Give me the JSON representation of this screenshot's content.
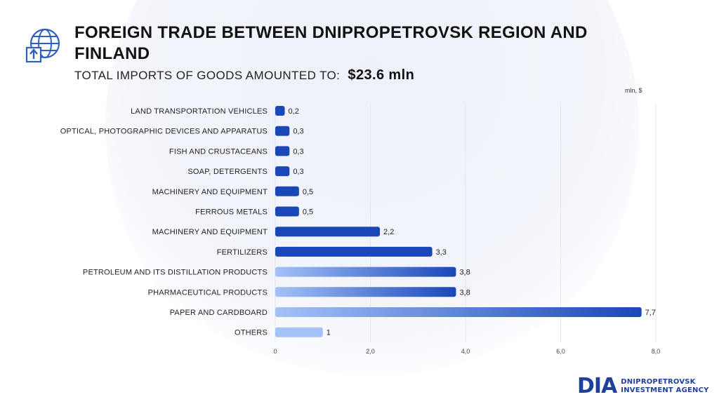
{
  "header": {
    "title": "FOREIGN TRADE BETWEEN DNIPROPETROVSK REGION AND FINLAND",
    "subtitle_prefix": "TOTAL IMPORTS OF GOODS AMOUNTED TO:",
    "subtitle_amount": "$23.6 mln",
    "icon": "globe-import-icon"
  },
  "chart_data": {
    "type": "bar",
    "orientation": "horizontal",
    "unit_label": "mln, $",
    "categories": [
      "LAND TRANSPORTATION VEHICLES",
      "OPTICAL, PHOTOGRAPHIC DEVICES AND APPARATUS",
      "FISH AND CRUSTACEANS",
      "SOAP, DETERGENTS",
      "MACHINERY AND EQUIPMENT",
      "FERROUS METALS",
      "MACHINERY AND EQUIPMENT",
      "FERTILIZERS",
      "PETROLEUM AND ITS DISTILLATION PRODUCTS",
      "PHARMACEUTICAL PRODUCTS",
      "PAPER AND CARDBOARD",
      "OTHERS"
    ],
    "values": [
      0.2,
      0.3,
      0.3,
      0.3,
      0.5,
      0.5,
      2.2,
      3.3,
      3.8,
      3.8,
      7.7,
      1
    ],
    "value_labels": [
      "0,2",
      "0,3",
      "0,3",
      "0,3",
      "0,5",
      "0,5",
      "2,2",
      "3,3",
      "3,8",
      "3,8",
      "7,7",
      "1"
    ],
    "x_ticks": [
      0,
      2,
      4,
      6,
      8
    ],
    "x_tick_labels": [
      "0",
      "2,0",
      "4,0",
      "6,0",
      "8,0"
    ],
    "xlim": [
      0,
      8
    ],
    "grid": true,
    "colors": {
      "dark": "#1a47b8",
      "light": "#a4c2f7"
    }
  },
  "logo": {
    "mark": "DIA",
    "line1": "DNIPROPETROVSK",
    "line2": "INVESTMENT AGENCY"
  }
}
